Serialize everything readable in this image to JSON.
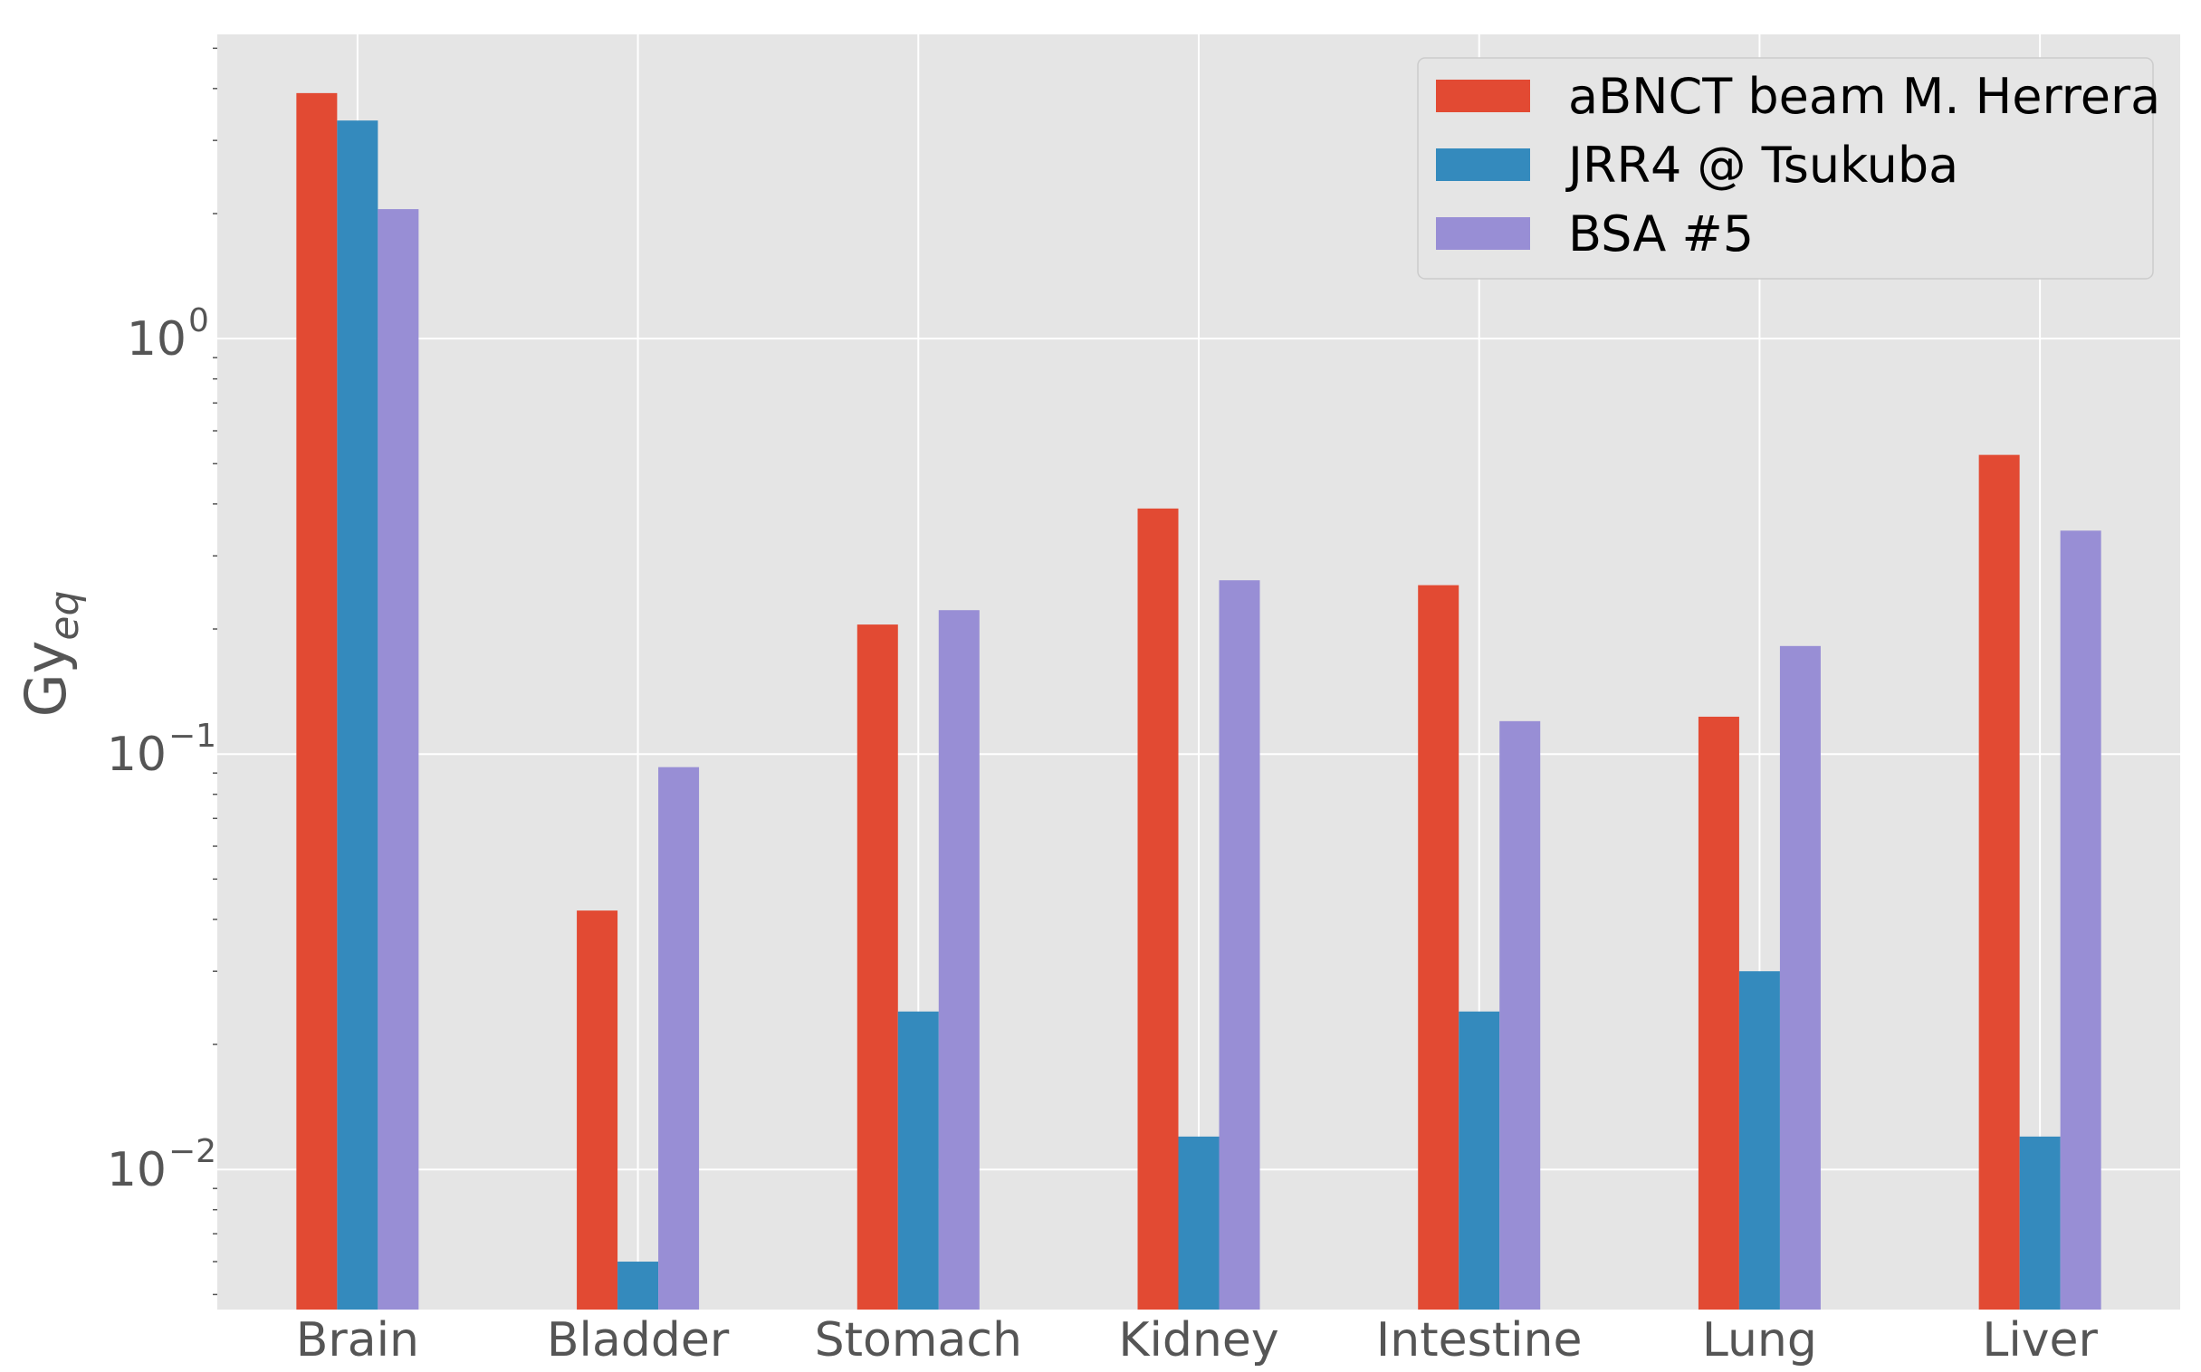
{
  "chart_data": {
    "type": "bar",
    "title": "",
    "xlabel": "",
    "ylabel": "Gy",
    "ylabel_subscript": "eq",
    "yscale": "log",
    "ylim": [
      0.0046,
      5.4
    ],
    "y_ticks": [
      {
        "value": 1,
        "base": "10",
        "exponent": "0"
      },
      {
        "value": 0.1,
        "base": "10",
        "exponent": "−1"
      },
      {
        "value": 0.01,
        "base": "10",
        "exponent": "−2"
      }
    ],
    "grid": true,
    "legend_position": "top-right",
    "categories": [
      "Brain",
      "Bladder",
      "Stomach",
      "Kidney",
      "Intestine",
      "Lung",
      "Liver"
    ],
    "series": [
      {
        "name": "aBNCT beam M. Herrera",
        "color": "#E24A33",
        "values": [
          3.9,
          0.042,
          0.205,
          0.39,
          0.255,
          0.123,
          0.525
        ]
      },
      {
        "name": "JRR4 @ Tsukuba",
        "color": "#348ABD",
        "values": [
          3.35,
          0.006,
          0.024,
          0.012,
          0.024,
          0.03,
          0.012
        ]
      },
      {
        "name": "BSA #5",
        "color": "#988ED5",
        "values": [
          2.05,
          0.093,
          0.222,
          0.262,
          0.12,
          0.182,
          0.345
        ]
      }
    ],
    "colors": {
      "plot_background": "#E5E5E5",
      "grid": "#FFFFFF",
      "legend_background": "#E5E5E5",
      "legend_border": "#CCCCCC"
    }
  }
}
